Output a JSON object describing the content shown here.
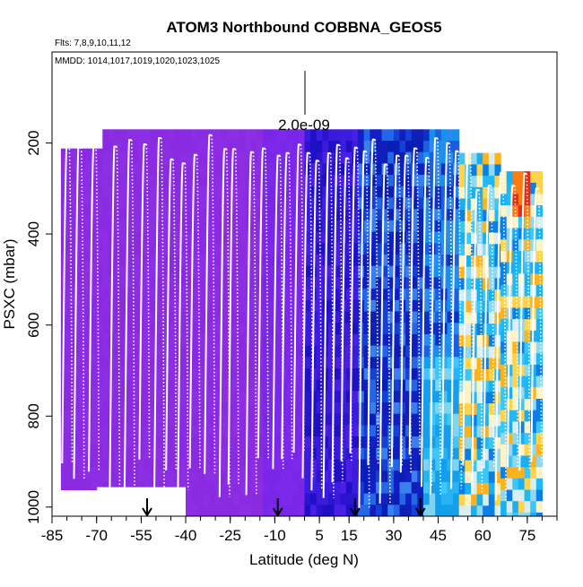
{
  "chart_data": {
    "type": "heatmap",
    "title": "ATOM3 Northbound COBBNA_GEOS5",
    "subtitle_flights": "Flts: 7,8,9,10,11,12",
    "subtitle_dates": "MMDD: 1014,1017,1019,1020,1023,1025",
    "xlabel": "Latitude (deg N)",
    "ylabel": "PSXC (mbar)",
    "xlim": [
      -85,
      85
    ],
    "ylim": [
      1020,
      0
    ],
    "x_ticks": [
      -85,
      -70,
      -55,
      -40,
      -25,
      -10,
      5,
      15,
      30,
      45,
      60,
      75
    ],
    "y_ticks": [
      200,
      400,
      600,
      800,
      1000
    ],
    "scale_label": "2.0e-09",
    "arrow_latitudes": [
      -53,
      -9,
      17,
      39
    ],
    "profile_peaks": [
      -80,
      -76,
      -71,
      -64,
      -59,
      -54,
      -49,
      -45,
      -41,
      -37,
      -32,
      -27,
      -24,
      -18,
      -14,
      -9,
      -6,
      -2,
      1,
      4,
      8,
      11,
      14,
      17,
      20,
      23,
      27,
      31,
      34,
      37,
      41,
      44,
      48,
      51,
      55,
      58,
      62,
      66,
      70,
      74,
      78
    ]
  }
}
